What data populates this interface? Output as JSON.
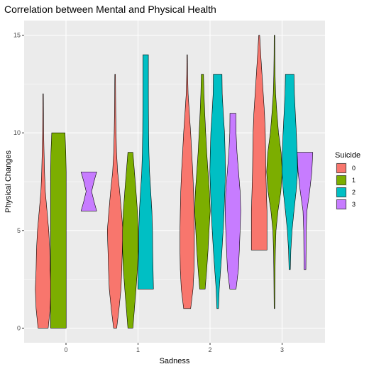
{
  "chart_data": {
    "type": "violin",
    "title": "Correlation between Mental and Physical Health",
    "xlabel": "Sadness",
    "ylabel": "Physical Changes",
    "categories": [
      "0",
      "1",
      "2",
      "3"
    ],
    "ylim": [
      -0.75,
      15.75
    ],
    "yticks": [
      "0",
      "5",
      "10",
      "15"
    ],
    "grid": true,
    "legend": {
      "title": "Suicide",
      "placement": "right",
      "entries": [
        "0",
        "1",
        "2",
        "3"
      ]
    },
    "series": [
      {
        "name": "0",
        "color": "#F8766D",
        "violins": [
          {
            "category": "0",
            "profile": [
              [
                0,
                0.65
              ],
              [
                1,
                0.9
              ],
              [
                2,
                1.0
              ],
              [
                3,
                0.9
              ],
              [
                4,
                0.85
              ],
              [
                5,
                0.72
              ],
              [
                6,
                0.5
              ],
              [
                7,
                0.28
              ],
              [
                8,
                0.18
              ],
              [
                9,
                0.12
              ],
              [
                10,
                0.07
              ],
              [
                11,
                0.05
              ],
              [
                12,
                0.03
              ]
            ]
          },
          {
            "category": "1",
            "profile": [
              [
                0,
                0.2
              ],
              [
                0.5,
                0.35
              ],
              [
                1,
                0.5
              ],
              [
                2,
                0.75
              ],
              [
                3,
                0.85
              ],
              [
                4,
                0.92
              ],
              [
                5,
                1.0
              ],
              [
                6,
                0.8
              ],
              [
                7,
                0.58
              ],
              [
                8,
                0.32
              ],
              [
                9,
                0.18
              ],
              [
                10,
                0.12
              ],
              [
                11,
                0.08
              ],
              [
                12,
                0.06
              ],
              [
                13,
                0.04
              ]
            ]
          },
          {
            "category": "2",
            "profile": [
              [
                1,
                0.45
              ],
              [
                2,
                0.75
              ],
              [
                3,
                0.88
              ],
              [
                4,
                0.92
              ],
              [
                5,
                0.92
              ],
              [
                6,
                0.88
              ],
              [
                7,
                0.82
              ],
              [
                8,
                0.72
              ],
              [
                9,
                0.58
              ],
              [
                10,
                0.45
              ],
              [
                11,
                0.28
              ],
              [
                12,
                0.12
              ],
              [
                13,
                0.06
              ],
              [
                14,
                0.03
              ]
            ]
          },
          {
            "category": "3",
            "profile": [
              [
                4,
                1.0
              ],
              [
                5,
                1.0
              ],
              [
                6,
                1.0
              ],
              [
                7,
                0.92
              ],
              [
                8,
                0.85
              ],
              [
                9,
                0.82
              ],
              [
                10,
                0.78
              ],
              [
                11,
                0.68
              ],
              [
                12,
                0.52
              ],
              [
                13,
                0.36
              ],
              [
                14,
                0.2
              ],
              [
                15,
                0.06
              ]
            ]
          }
        ]
      },
      {
        "name": "1",
        "color": "#7CAE00",
        "violins": [
          {
            "category": "0",
            "profile": [
              [
                0,
                1.0
              ],
              [
                1,
                1.0
              ],
              [
                2,
                1.0
              ],
              [
                3,
                1.0
              ],
              [
                4,
                1.0
              ],
              [
                5,
                1.0
              ],
              [
                6,
                1.0
              ],
              [
                7,
                1.0
              ],
              [
                8,
                1.0
              ],
              [
                9,
                0.95
              ],
              [
                10,
                0.85
              ]
            ]
          },
          {
            "category": "1",
            "profile": [
              [
                0,
                0.32
              ],
              [
                1,
                0.52
              ],
              [
                2,
                0.72
              ],
              [
                3,
                0.9
              ],
              [
                4,
                1.0
              ],
              [
                5,
                1.0
              ],
              [
                6,
                0.9
              ],
              [
                7,
                0.72
              ],
              [
                8,
                0.52
              ],
              [
                9,
                0.32
              ]
            ]
          },
          {
            "category": "2",
            "profile": [
              [
                2,
                0.35
              ],
              [
                3,
                0.55
              ],
              [
                4,
                0.72
              ],
              [
                5,
                0.85
              ],
              [
                6,
                1.0
              ],
              [
                7,
                0.9
              ],
              [
                8,
                0.72
              ],
              [
                9,
                0.55
              ],
              [
                10,
                0.42
              ],
              [
                11,
                0.3
              ],
              [
                12,
                0.2
              ],
              [
                13,
                0.14
              ]
            ]
          },
          {
            "category": "3",
            "profile": [
              [
                1,
                0.04
              ],
              [
                2,
                0.06
              ],
              [
                3,
                0.08
              ],
              [
                4,
                0.12
              ],
              [
                5,
                0.2
              ],
              [
                6,
                0.45
              ],
              [
                7,
                0.82
              ],
              [
                8,
                1.0
              ],
              [
                9,
                0.85
              ],
              [
                10,
                0.52
              ],
              [
                11,
                0.32
              ],
              [
                12,
                0.15
              ],
              [
                13,
                0.08
              ],
              [
                14,
                0.05
              ],
              [
                15,
                0.04
              ]
            ]
          }
        ]
      },
      {
        "name": "2",
        "color": "#00BFC4",
        "violins": [
          {
            "category": "1",
            "profile": [
              [
                2,
                1.0
              ],
              [
                3,
                0.95
              ],
              [
                4,
                0.9
              ],
              [
                5,
                0.88
              ],
              [
                6,
                0.8
              ],
              [
                7,
                0.65
              ],
              [
                8,
                0.5
              ],
              [
                9,
                0.42
              ],
              [
                10,
                0.38
              ],
              [
                11,
                0.36
              ],
              [
                12,
                0.35
              ],
              [
                13,
                0.35
              ],
              [
                14,
                0.35
              ]
            ]
          },
          {
            "category": "2",
            "profile": [
              [
                1,
                0.1
              ],
              [
                2,
                0.2
              ],
              [
                3,
                0.38
              ],
              [
                4,
                0.55
              ],
              [
                5,
                0.7
              ],
              [
                6,
                0.82
              ],
              [
                7,
                0.92
              ],
              [
                8,
                1.0
              ],
              [
                9,
                0.95
              ],
              [
                10,
                0.88
              ],
              [
                11,
                0.72
              ],
              [
                12,
                0.58
              ],
              [
                13,
                0.55
              ]
            ]
          },
          {
            "category": "3",
            "profile": [
              [
                3,
                0.08
              ],
              [
                4,
                0.15
              ],
              [
                5,
                0.3
              ],
              [
                6,
                0.55
              ],
              [
                7,
                0.82
              ],
              [
                8,
                1.0
              ],
              [
                9,
                0.95
              ],
              [
                10,
                0.85
              ],
              [
                11,
                0.72
              ],
              [
                12,
                0.6
              ],
              [
                13,
                0.55
              ]
            ]
          }
        ]
      },
      {
        "name": "3",
        "color": "#C77CFF",
        "violins": [
          {
            "category": "0",
            "profile": [
              [
                6,
                1.0
              ],
              [
                6.5,
                0.65
              ],
              [
                7,
                0.35
              ],
              [
                7.5,
                0.65
              ],
              [
                8,
                1.0
              ]
            ]
          },
          {
            "category": "2",
            "profile": [
              [
                2,
                0.4
              ],
              [
                3,
                0.7
              ],
              [
                4,
                0.82
              ],
              [
                5,
                0.92
              ],
              [
                6,
                1.0
              ],
              [
                7,
                0.92
              ],
              [
                8,
                0.72
              ],
              [
                9,
                0.52
              ],
              [
                10,
                0.4
              ],
              [
                11,
                0.38
              ]
            ]
          },
          {
            "category": "3",
            "profile": [
              [
                3,
                0.12
              ],
              [
                4,
                0.14
              ],
              [
                5,
                0.16
              ],
              [
                6,
                0.25
              ],
              [
                7,
                0.6
              ],
              [
                8,
                0.88
              ],
              [
                9,
                1.0
              ]
            ]
          }
        ]
      }
    ]
  }
}
